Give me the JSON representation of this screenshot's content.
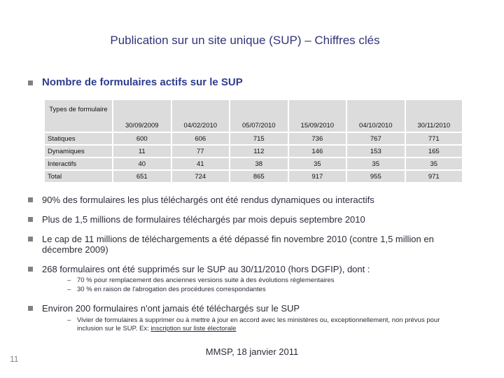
{
  "title": "Publication sur un site unique (SUP) – Chiffres clés",
  "section": {
    "heading": "Nombre de formulaires actifs sur le SUP",
    "table": {
      "header": [
        "Types de formulaire",
        "30/09/2009",
        "04/02/2010",
        "05/07/2010",
        "15/09/2010",
        "04/10/2010",
        "30/11/2010"
      ],
      "rows": [
        [
          "Statiques",
          600,
          606,
          715,
          736,
          767,
          771
        ],
        [
          "Dynamiques",
          11,
          77,
          112,
          146,
          153,
          165
        ],
        [
          "Interactifs",
          40,
          41,
          38,
          35,
          35,
          35
        ],
        [
          "Total",
          651,
          724,
          865,
          917,
          955,
          971
        ]
      ]
    }
  },
  "bullets": [
    {
      "text": "90% des formulaires les plus téléchargés ont été rendus dynamiques ou interactifs",
      "subs": []
    },
    {
      "text": "Plus de 1,5 millions de formulaires téléchargés par mois depuis septembre 2010",
      "subs": []
    },
    {
      "text": "Le cap de 11 millions de téléchargements a été dépassé fin novembre 2010 (contre 1,5 million en décembre 2009)",
      "subs": []
    },
    {
      "text": "268 formulaires ont été supprimés sur le SUP au 30/11/2010 (hors DGFIP), dont :",
      "subs": [
        {
          "text": "70 % pour remplacement des anciennes versions suite à des évolutions réglementaires"
        },
        {
          "text": "30 % en raison de l'abrogation des procédures correspondantes"
        }
      ]
    },
    {
      "text": "Environ 200 formulaires n'ont jamais été téléchargés sur le SUP",
      "subs": [
        {
          "text": "Vivier de formulaires à supprimer ou à mettre à jour en accord avec les ministères ou, exceptionnellement, non prévus pour inclusion sur le SUP. Ex: ",
          "link": "inscription sur liste électorale"
        }
      ]
    }
  ],
  "footer": "MMSP, 18 janvier 2011",
  "page_number": "11"
}
